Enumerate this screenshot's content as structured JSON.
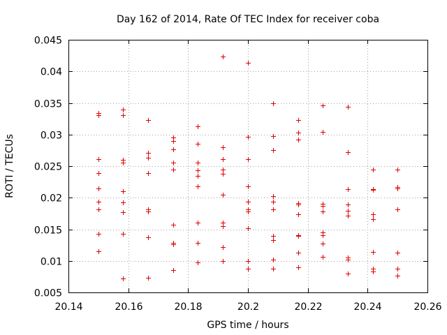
{
  "chart_data": {
    "type": "scatter",
    "title": "Day 162 of 2014, Rate Of TEC Index for receiver coba",
    "xlabel": "GPS time / hours",
    "ylabel": "ROTI / TECUs",
    "xlim": [
      20.14,
      20.26
    ],
    "ylim": [
      0.005,
      0.045
    ],
    "grid": true,
    "marker": "+",
    "marker_color": "#e00000",
    "xticks": [
      {
        "value": 20.14,
        "label": "20.14"
      },
      {
        "value": 20.16,
        "label": "20.16"
      },
      {
        "value": 20.18,
        "label": "20.18"
      },
      {
        "value": 20.2,
        "label": "20.2"
      },
      {
        "value": 20.22,
        "label": "20.22"
      },
      {
        "value": 20.24,
        "label": "20.24"
      },
      {
        "value": 20.26,
        "label": "20.26"
      }
    ],
    "yticks": [
      {
        "value": 0.005,
        "label": "0.005"
      },
      {
        "value": 0.01,
        "label": "0.01"
      },
      {
        "value": 0.015,
        "label": "0.015"
      },
      {
        "value": 0.02,
        "label": "0.02"
      },
      {
        "value": 0.025,
        "label": "0.025"
      },
      {
        "value": 0.03,
        "label": "0.03"
      },
      {
        "value": 0.035,
        "label": "0.035"
      },
      {
        "value": 0.04,
        "label": "0.04"
      },
      {
        "value": 0.045,
        "label": "0.045"
      }
    ],
    "points": [
      [
        20.15,
        0.0331
      ],
      [
        20.15,
        0.0334
      ],
      [
        20.15,
        0.0261
      ],
      [
        20.15,
        0.0239
      ],
      [
        20.15,
        0.0215
      ],
      [
        20.15,
        0.0194
      ],
      [
        20.15,
        0.0181
      ],
      [
        20.15,
        0.0143
      ],
      [
        20.15,
        0.0115
      ],
      [
        20.1583,
        0.0339
      ],
      [
        20.1583,
        0.0331
      ],
      [
        20.1583,
        0.026
      ],
      [
        20.1583,
        0.0255
      ],
      [
        20.1583,
        0.021
      ],
      [
        20.1583,
        0.0192
      ],
      [
        20.1583,
        0.0177
      ],
      [
        20.1583,
        0.0143
      ],
      [
        20.1583,
        0.0072
      ],
      [
        20.1667,
        0.0323
      ],
      [
        20.1667,
        0.0271
      ],
      [
        20.1667,
        0.0263
      ],
      [
        20.1667,
        0.0239
      ],
      [
        20.1667,
        0.0182
      ],
      [
        20.1667,
        0.0178
      ],
      [
        20.1667,
        0.0137
      ],
      [
        20.1667,
        0.0073
      ],
      [
        20.175,
        0.0295
      ],
      [
        20.175,
        0.029
      ],
      [
        20.175,
        0.0277
      ],
      [
        20.175,
        0.0255
      ],
      [
        20.175,
        0.0245
      ],
      [
        20.175,
        0.0157
      ],
      [
        20.175,
        0.0129
      ],
      [
        20.175,
        0.0126
      ],
      [
        20.175,
        0.0085
      ],
      [
        20.1833,
        0.0313
      ],
      [
        20.1833,
        0.0285
      ],
      [
        20.1833,
        0.0256
      ],
      [
        20.1833,
        0.0243
      ],
      [
        20.1833,
        0.0235
      ],
      [
        20.1833,
        0.0218
      ],
      [
        20.1833,
        0.0161
      ],
      [
        20.1833,
        0.0129
      ],
      [
        20.1833,
        0.0128
      ],
      [
        20.1833,
        0.0098
      ],
      [
        20.1917,
        0.0423
      ],
      [
        20.1917,
        0.028
      ],
      [
        20.1917,
        0.0261
      ],
      [
        20.1917,
        0.0245
      ],
      [
        20.1917,
        0.0238
      ],
      [
        20.1917,
        0.0205
      ],
      [
        20.1917,
        0.016
      ],
      [
        20.1917,
        0.0155
      ],
      [
        20.1917,
        0.0122
      ],
      [
        20.1917,
        0.01
      ],
      [
        20.2,
        0.0413
      ],
      [
        20.2,
        0.0296
      ],
      [
        20.2,
        0.0261
      ],
      [
        20.2,
        0.0218
      ],
      [
        20.2,
        0.0194
      ],
      [
        20.2,
        0.0181
      ],
      [
        20.2,
        0.0178
      ],
      [
        20.2,
        0.0152
      ],
      [
        20.2,
        0.01
      ],
      [
        20.2,
        0.0088
      ],
      [
        20.2083,
        0.0349
      ],
      [
        20.2083,
        0.0298
      ],
      [
        20.2083,
        0.0275
      ],
      [
        20.2083,
        0.0203
      ],
      [
        20.2083,
        0.0194
      ],
      [
        20.2083,
        0.0181
      ],
      [
        20.2083,
        0.014
      ],
      [
        20.2083,
        0.0133
      ],
      [
        20.2083,
        0.0102
      ],
      [
        20.2083,
        0.0088
      ],
      [
        20.2167,
        0.0323
      ],
      [
        20.2167,
        0.0303
      ],
      [
        20.2167,
        0.0292
      ],
      [
        20.2167,
        0.0191
      ],
      [
        20.2167,
        0.0189
      ],
      [
        20.2167,
        0.0174
      ],
      [
        20.2167,
        0.0141
      ],
      [
        20.2167,
        0.0139
      ],
      [
        20.2167,
        0.0113
      ],
      [
        20.2167,
        0.009
      ],
      [
        20.225,
        0.0346
      ],
      [
        20.225,
        0.0304
      ],
      [
        20.225,
        0.019
      ],
      [
        20.225,
        0.0187
      ],
      [
        20.225,
        0.0178
      ],
      [
        20.225,
        0.0145
      ],
      [
        20.225,
        0.0141
      ],
      [
        20.225,
        0.0127
      ],
      [
        20.225,
        0.0106
      ],
      [
        20.2333,
        0.0344
      ],
      [
        20.2333,
        0.0272
      ],
      [
        20.2333,
        0.0214
      ],
      [
        20.2333,
        0.0189
      ],
      [
        20.2333,
        0.0179
      ],
      [
        20.2333,
        0.0172
      ],
      [
        20.2333,
        0.0105
      ],
      [
        20.2333,
        0.0102
      ],
      [
        20.2333,
        0.008
      ],
      [
        20.2417,
        0.0245
      ],
      [
        20.2417,
        0.0214
      ],
      [
        20.2417,
        0.0212
      ],
      [
        20.2417,
        0.0174
      ],
      [
        20.2417,
        0.0166
      ],
      [
        20.2417,
        0.0114
      ],
      [
        20.2417,
        0.0088
      ],
      [
        20.2417,
        0.0083
      ],
      [
        20.25,
        0.0245
      ],
      [
        20.25,
        0.0217
      ],
      [
        20.25,
        0.0215
      ],
      [
        20.25,
        0.0182
      ],
      [
        20.25,
        0.0113
      ],
      [
        20.25,
        0.0088
      ],
      [
        20.25,
        0.0077
      ]
    ]
  }
}
